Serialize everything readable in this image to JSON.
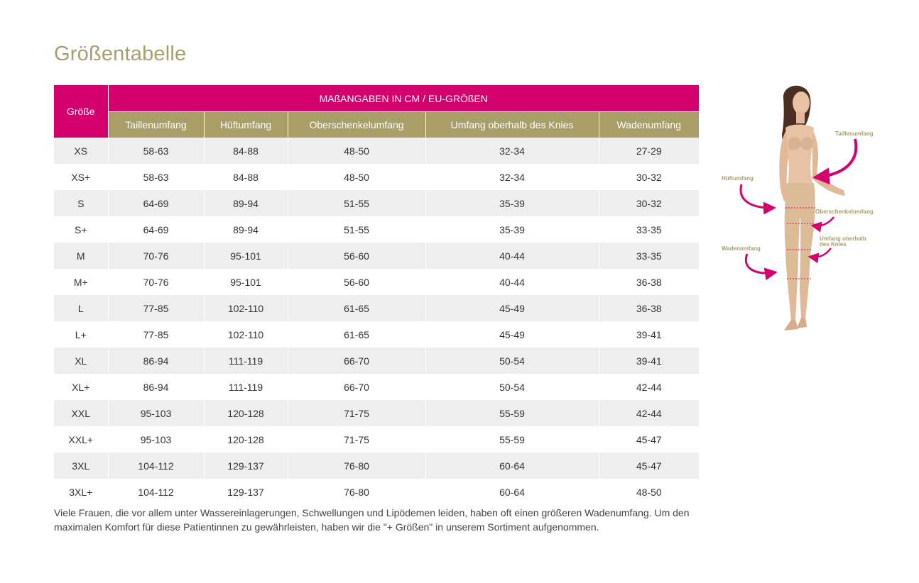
{
  "page": {
    "title": "Größentabelle"
  },
  "table": {
    "size_header": "Größe",
    "group_header": "MAßANGABEN IN CM / EU-GRÖßEN",
    "columns": [
      "Taillenumfang",
      "Hüftumfang",
      "Oberschenkelumfang",
      "Umfang oberhalb des Knies",
      "Wadenumfang"
    ],
    "rows": [
      {
        "size": "XS",
        "values": [
          "58-63",
          "84-88",
          "48-50",
          "32-34",
          "27-29"
        ]
      },
      {
        "size": "XS+",
        "values": [
          "58-63",
          "84-88",
          "48-50",
          "32-34",
          "30-32"
        ]
      },
      {
        "size": "S",
        "values": [
          "64-69",
          "89-94",
          "51-55",
          "35-39",
          "30-32"
        ]
      },
      {
        "size": "S+",
        "values": [
          "64-69",
          "89-94",
          "51-55",
          "35-39",
          "33-35"
        ]
      },
      {
        "size": "M",
        "values": [
          "70-76",
          "95-101",
          "56-60",
          "40-44",
          "33-35"
        ]
      },
      {
        "size": "M+",
        "values": [
          "70-76",
          "95-101",
          "56-60",
          "40-44",
          "36-38"
        ]
      },
      {
        "size": "L",
        "values": [
          "77-85",
          "102-110",
          "61-65",
          "45-49",
          "36-38"
        ]
      },
      {
        "size": "L+",
        "values": [
          "77-85",
          "102-110",
          "61-65",
          "45-49",
          "39-41"
        ]
      },
      {
        "size": "XL",
        "values": [
          "86-94",
          "111-119",
          "66-70",
          "50-54",
          "39-41"
        ]
      },
      {
        "size": "XL+",
        "values": [
          "86-94",
          "111-119",
          "66-70",
          "50-54",
          "42-44"
        ]
      },
      {
        "size": "XXL",
        "values": [
          "95-103",
          "120-128",
          "71-75",
          "55-59",
          "42-44"
        ]
      },
      {
        "size": "XXL+",
        "values": [
          "95-103",
          "120-128",
          "71-75",
          "55-59",
          "45-47"
        ]
      },
      {
        "size": "3XL",
        "values": [
          "104-112",
          "129-137",
          "76-80",
          "60-64",
          "45-47"
        ]
      },
      {
        "size": "3XL+",
        "values": [
          "104-112",
          "129-137",
          "76-80",
          "60-64",
          "48-50"
        ]
      }
    ]
  },
  "footnote": "Viele Frauen, die vor allem unter Wassereinlagerungen, Schwellungen und Lipödemen leiden, haben oft einen größeren Wadenumfang. Um den maximalen Komfort für diese Patientinnen zu gewährleisten, haben wir die \"+ Größen\" in unserem Sortiment aufgenommen.",
  "figure": {
    "labels": {
      "waist": "Taillenumfang",
      "hip": "Hüftumfang",
      "thigh": "Oberschenkelumfang",
      "knee_line1": "Umfang oberhalb",
      "knee_line2": "des Knies",
      "calf": "Wadenumfang"
    }
  },
  "colors": {
    "accent_magenta": "#d4006e",
    "accent_gold": "#a99d68",
    "title_gold": "#a89d6c",
    "row_shade": "#eeeeee"
  }
}
